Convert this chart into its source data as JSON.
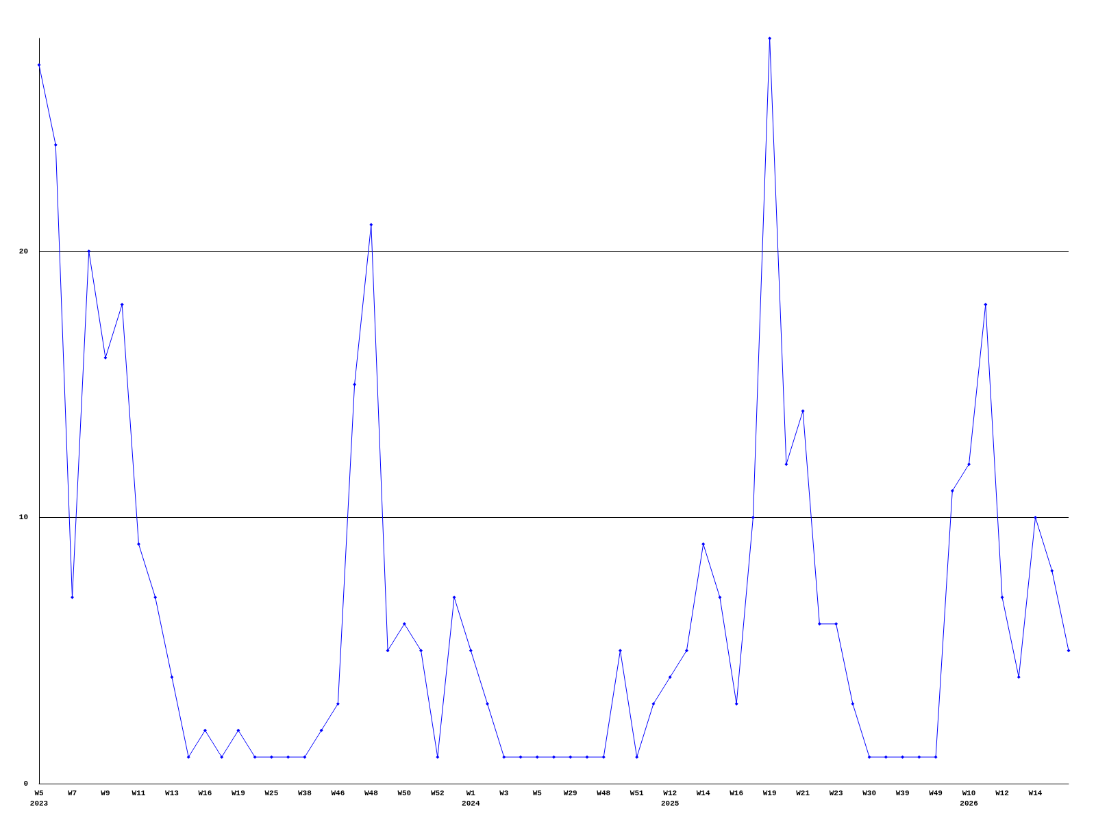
{
  "chart_data": {
    "type": "line",
    "categories": [
      "W5\n2023",
      null,
      "W7",
      null,
      "W9",
      null,
      "W11",
      null,
      "W13",
      null,
      "W16",
      null,
      "W19",
      null,
      "W25",
      null,
      "W38",
      null,
      "W46",
      null,
      "W48",
      null,
      "W50",
      null,
      "W52",
      null,
      "W1\n2024",
      null,
      "W3",
      null,
      "W5",
      null,
      "W29",
      null,
      "W48",
      null,
      "W51",
      null,
      "W12\n2025",
      null,
      "W14",
      null,
      "W16",
      null,
      "W19",
      null,
      "W21",
      null,
      "W23",
      null,
      "W30",
      null,
      "W39",
      null,
      "W49",
      null,
      "W10\n2026",
      null,
      "W12",
      null,
      "W14",
      null,
      null
    ],
    "series": [
      {
        "color": "#0000ff",
        "values": [
          27,
          24,
          7,
          20,
          16,
          18,
          9,
          7,
          4,
          1,
          2,
          1,
          2,
          1,
          1,
          1,
          1,
          2,
          3,
          15,
          21,
          5,
          6,
          5,
          1,
          7,
          5,
          3,
          1,
          1,
          1,
          1,
          1,
          1,
          1,
          5,
          1,
          3,
          4,
          5,
          9,
          7,
          3,
          10,
          28,
          12,
          14,
          6,
          6,
          3,
          1,
          1,
          1,
          1,
          1,
          11,
          12,
          18,
          7,
          4,
          10,
          8,
          5
        ]
      }
    ],
    "ylim": [
      0,
      28
    ],
    "yticks": [
      0,
      10,
      20
    ],
    "grid": "y",
    "legend": false,
    "marker": "diamond",
    "line_style": "solid"
  }
}
